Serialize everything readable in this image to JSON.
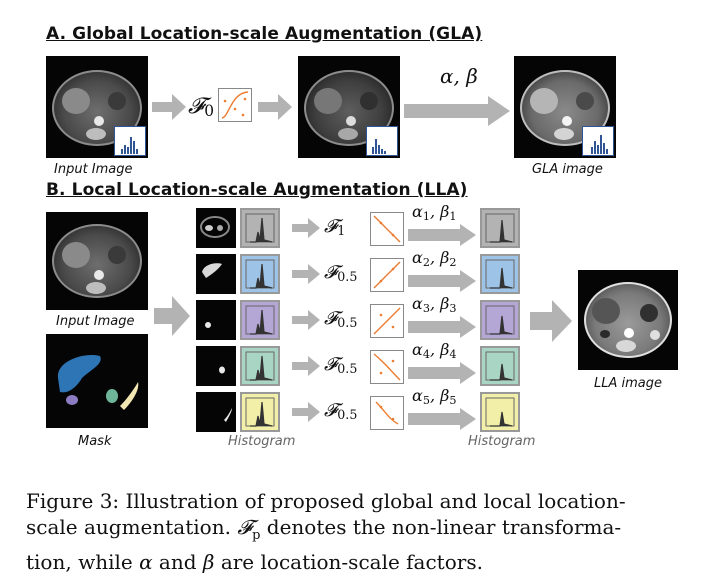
{
  "section_a": {
    "title": "A. Global Location-scale Augmentation (GLA)",
    "input_caption": "Input Image",
    "transform_label": "𝓕",
    "transform_sub": "0",
    "params_label": "α, β",
    "output_caption": "GLA image"
  },
  "section_b": {
    "title": "B. Local Location-scale Augmentation (LLA)",
    "input_caption": "Input Image",
    "mask_caption": "Mask",
    "histogram_caption_left": "Histogram",
    "histogram_caption_right": "Histogram",
    "output_caption": "LLA image",
    "rows": [
      {
        "f_sub": "1",
        "alpha_sub": "1",
        "beta_sub": "1",
        "color": "#b3b3b3"
      },
      {
        "f_sub": "0.5",
        "alpha_sub": "2",
        "beta_sub": "2",
        "color": "#9dc3e6"
      },
      {
        "f_sub": "0.5",
        "alpha_sub": "3",
        "beta_sub": "3",
        "color": "#b4a7d6"
      },
      {
        "f_sub": "0.5",
        "alpha_sub": "4",
        "beta_sub": "4",
        "color": "#a9d5c5"
      },
      {
        "f_sub": "0.5",
        "alpha_sub": "5",
        "beta_sub": "5",
        "color": "#f2f0a8"
      }
    ]
  },
  "figure_caption": {
    "lead": "Figure 3: Illustration of proposed global and local location-",
    "line2_a": "scale augmentation. ",
    "fp_symbol": "𝓕",
    "fp_sub": "p",
    "line2_b": " denotes the non-linear transforma-",
    "line3_a": "tion, while ",
    "alpha": "α",
    "line3_b": " and ",
    "beta": "β",
    "line3_c": " are location-scale factors."
  },
  "colors": {
    "arrow_gray": "#b3b3b3",
    "hist_blue": "#2f5597",
    "point_orange": "#ed7d31"
  }
}
